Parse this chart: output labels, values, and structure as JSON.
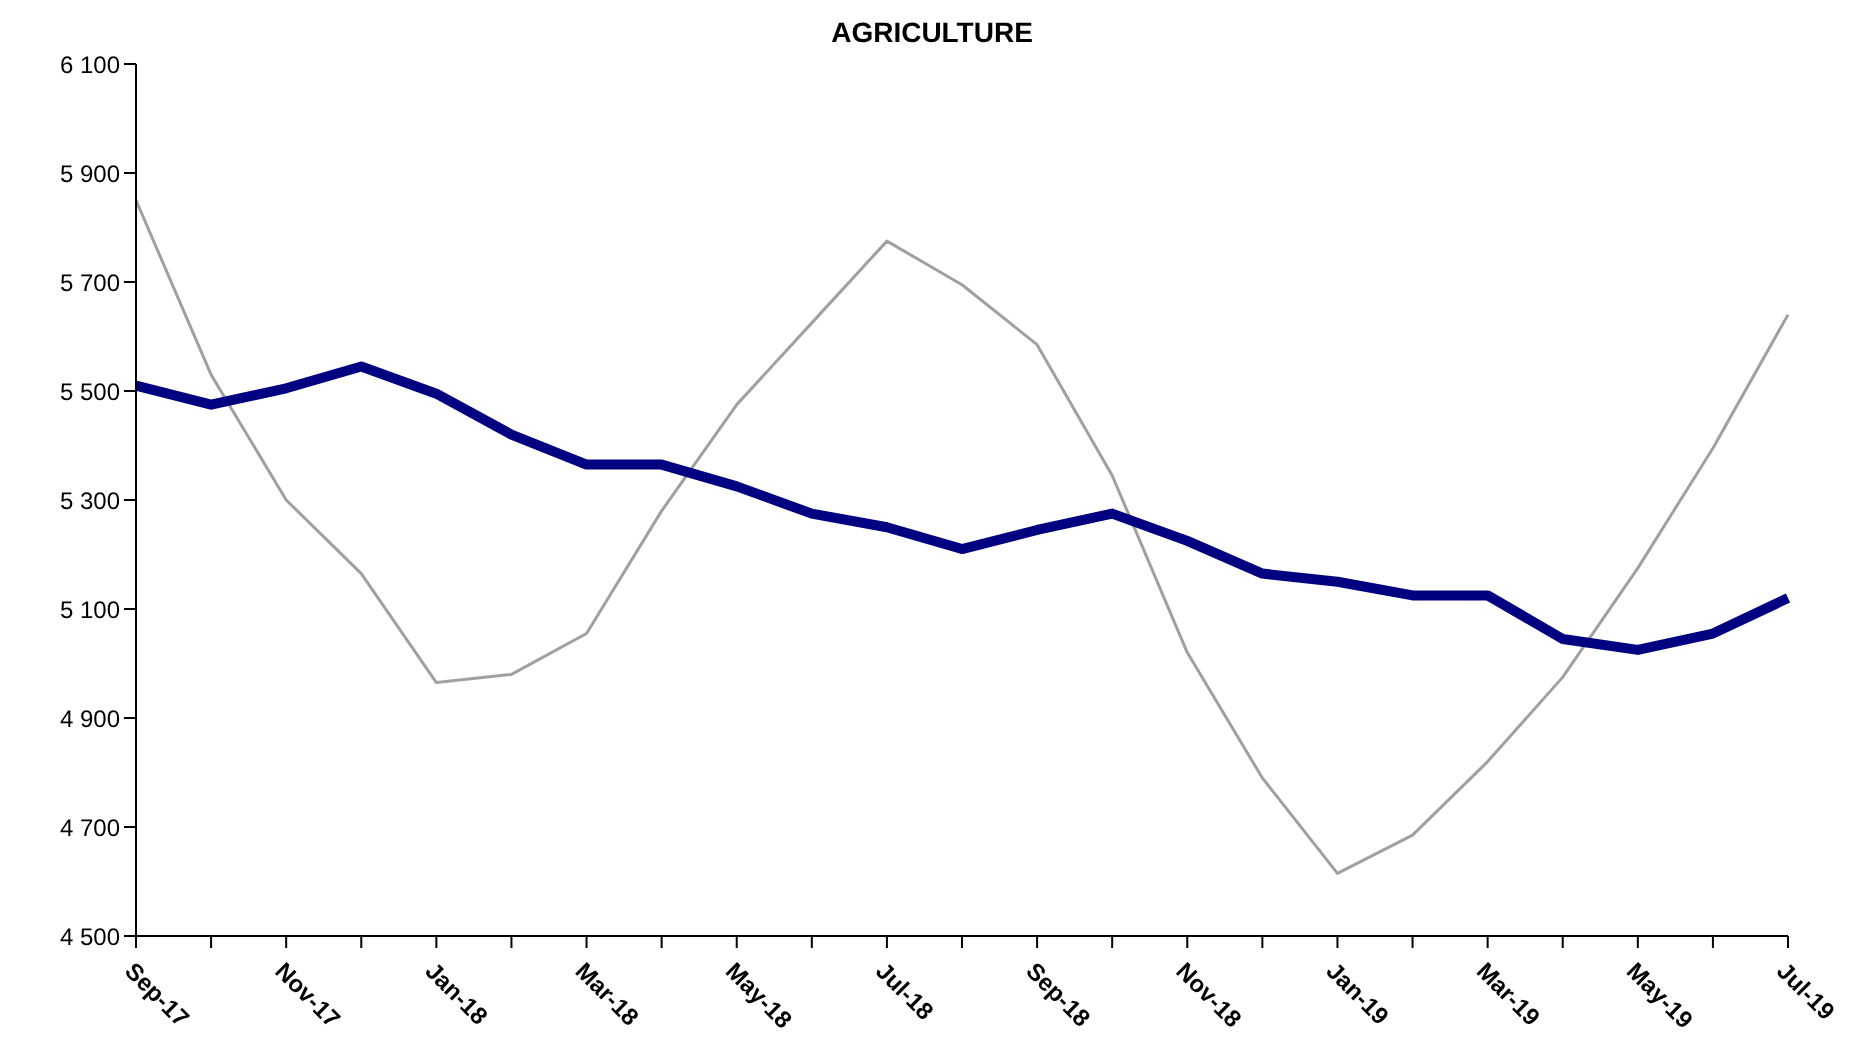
{
  "chart_data": {
    "type": "line",
    "title": "AGRICULTURE",
    "categories": [
      "Sep-17",
      null,
      "Nov-17",
      null,
      "Jan-18",
      null,
      "Mar-18",
      null,
      "May-18",
      null,
      "Jul-18",
      null,
      "Sep-18",
      null,
      "Nov-18",
      null,
      "Jan-19",
      null,
      "Mar-19",
      null,
      "May-19",
      null,
      "Jul-19"
    ],
    "series": [
      {
        "color": "#a0a0a0",
        "values": [
          5850,
          5530,
          5300,
          5165,
          4965,
          4980,
          5055,
          5280,
          5475,
          5625,
          5775,
          5695,
          5585,
          5345,
          5020,
          4790,
          4615,
          4685,
          4820,
          4975,
          5175,
          5395,
          5640
        ]
      },
      {
        "color": "#000080",
        "values": [
          5510,
          5475,
          5505,
          5545,
          5495,
          5420,
          5365,
          5365,
          5325,
          5275,
          5250,
          5210,
          5245,
          5275,
          5225,
          5165,
          5150,
          5125,
          5125,
          5045,
          5025,
          5055,
          5120
        ]
      }
    ],
    "ylim": [
      4500,
      6100
    ],
    "yticks": [
      {
        "value": 4500,
        "label": "4 500"
      },
      {
        "value": 4700,
        "label": "4 700"
      },
      {
        "value": 4900,
        "label": "4 900"
      },
      {
        "value": 5100,
        "label": "5 100"
      },
      {
        "value": 5300,
        "label": "5 300"
      },
      {
        "value": 5500,
        "label": "5 500"
      },
      {
        "value": 5700,
        "label": "5 700"
      },
      {
        "value": 5900,
        "label": "5 900"
      },
      {
        "value": 6100,
        "label": "6 100"
      }
    ],
    "grid": false,
    "legend": false,
    "marker": "none"
  }
}
